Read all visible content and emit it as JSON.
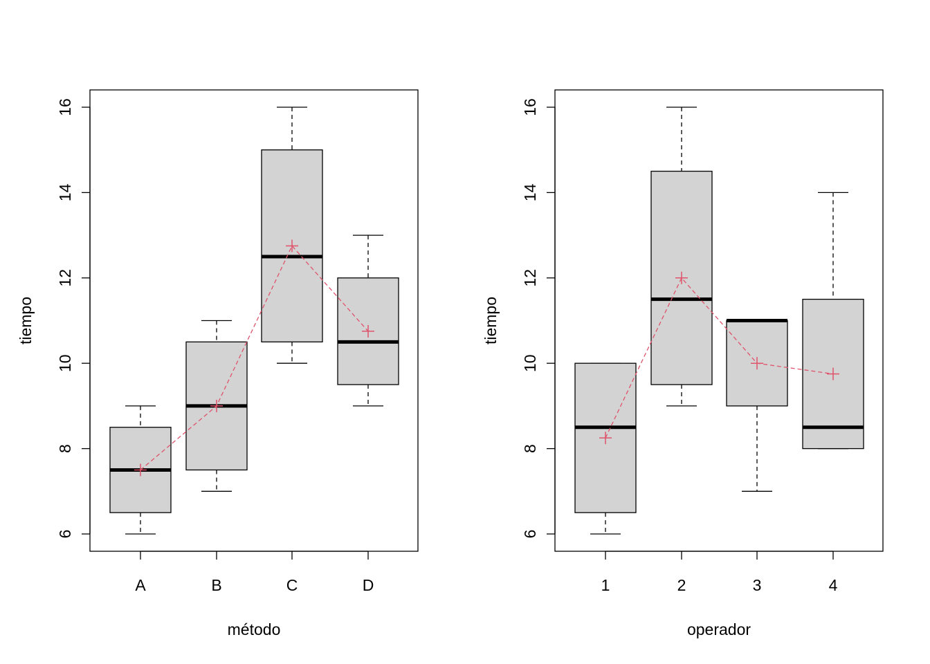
{
  "colors": {
    "box_fill": "#d3d3d3",
    "box_stroke": "#000000",
    "mean_marker": "#df536b",
    "background": "#ffffff"
  },
  "chart_data": [
    {
      "type": "boxplot",
      "xlabel": "método",
      "ylabel": "tiempo",
      "ylim": [
        6,
        16
      ],
      "yticks": [
        "6",
        "8",
        "10",
        "12",
        "14",
        "16"
      ],
      "categories": [
        "A",
        "B",
        "C",
        "D"
      ],
      "boxes": [
        {
          "min": 6,
          "q1": 6.5,
          "median": 7.5,
          "q3": 8.5,
          "max": 9
        },
        {
          "min": 7,
          "q1": 7.5,
          "median": 9,
          "q3": 10.5,
          "max": 11
        },
        {
          "min": 10,
          "q1": 10.5,
          "median": 12.5,
          "q3": 15,
          "max": 16
        },
        {
          "min": 9,
          "q1": 9.5,
          "median": 10.5,
          "q3": 12,
          "max": 13
        }
      ],
      "means": [
        7.5,
        9,
        12.75,
        10.75
      ]
    },
    {
      "type": "boxplot",
      "xlabel": "operador",
      "ylabel": "tiempo",
      "ylim": [
        6,
        16
      ],
      "yticks": [
        "6",
        "8",
        "10",
        "12",
        "14",
        "16"
      ],
      "categories": [
        "1",
        "2",
        "3",
        "4"
      ],
      "boxes": [
        {
          "min": 6,
          "q1": 6.5,
          "median": 8.5,
          "q3": 10,
          "max": 10
        },
        {
          "min": 9,
          "q1": 9.5,
          "median": 11.5,
          "q3": 14.5,
          "max": 16
        },
        {
          "min": 7,
          "q1": 9,
          "median": 11,
          "q3": 11,
          "max": 11
        },
        {
          "min": 8,
          "q1": 8,
          "median": 8.5,
          "q3": 11.5,
          "max": 14
        }
      ],
      "means": [
        8.25,
        12,
        10,
        9.75
      ]
    }
  ]
}
